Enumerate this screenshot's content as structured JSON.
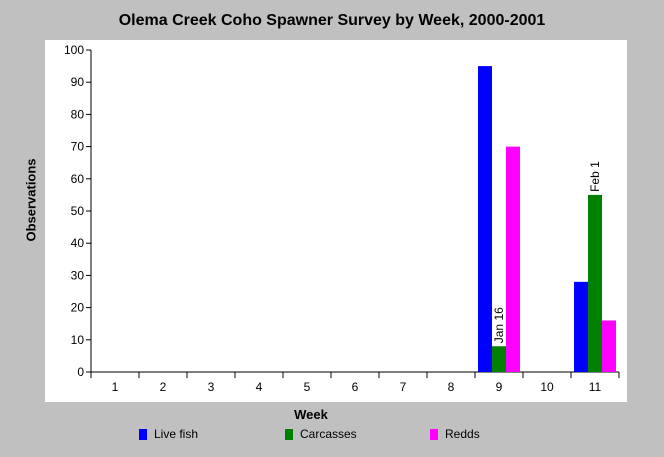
{
  "chart_data": {
    "type": "bar",
    "title": "Olema Creek Coho Spawner Survey by Week, 2000-2001",
    "xlabel": "Week",
    "ylabel": "Observations",
    "ylim": [
      0,
      100
    ],
    "yticks": [
      0,
      10,
      20,
      30,
      40,
      50,
      60,
      70,
      80,
      90,
      100
    ],
    "categories": [
      "1",
      "2",
      "3",
      "4",
      "5",
      "6",
      "7",
      "8",
      "9",
      "10",
      "11"
    ],
    "series": [
      {
        "name": "Live fish",
        "color": "#0000ff",
        "values": [
          0,
          0,
          0,
          0,
          0,
          0,
          0,
          0,
          95,
          0,
          28
        ]
      },
      {
        "name": "Carcasses",
        "color": "#008000",
        "values": [
          0,
          0,
          0,
          0,
          0,
          0,
          0,
          0,
          8,
          0,
          55
        ]
      },
      {
        "name": "Redds",
        "color": "#ff00ff",
        "values": [
          0,
          0,
          0,
          0,
          0,
          0,
          0,
          0,
          70,
          0,
          16
        ]
      }
    ],
    "annotations": [
      {
        "text": "Jan 16",
        "category": "9",
        "series": "Carcasses"
      },
      {
        "text": "Feb 1",
        "category": "11",
        "series": "Carcasses"
      }
    ],
    "grid": false,
    "legend_position": "bottom",
    "colors": {
      "background": "#c0c0c0",
      "plot_area": "#ffffff"
    }
  }
}
